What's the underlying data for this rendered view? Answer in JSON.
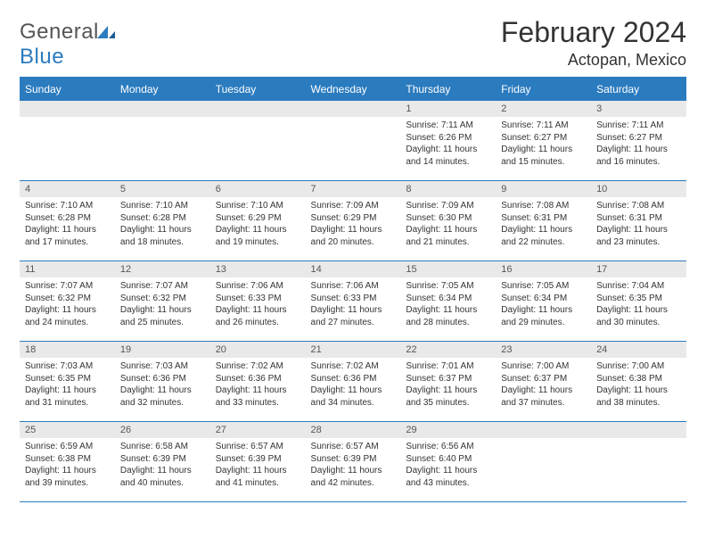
{
  "logo": {
    "textGray": "General",
    "textBlue": "Blue"
  },
  "title": "February 2024",
  "location": "Actopan, Mexico",
  "colors": {
    "headerBg": "#2b7bbf",
    "headerText": "#ffffff",
    "dayNumBg": "#e9e9e9",
    "bodyText": "#333333",
    "logoGray": "#555555",
    "logoBlue": "#2b7bbf",
    "pageBg": "#ffffff"
  },
  "dayNames": [
    "Sunday",
    "Monday",
    "Tuesday",
    "Wednesday",
    "Thursday",
    "Friday",
    "Saturday"
  ],
  "weeks": [
    [
      null,
      null,
      null,
      null,
      {
        "n": "1",
        "sr": "7:11 AM",
        "ss": "6:26 PM",
        "dl": "11 hours and 14 minutes."
      },
      {
        "n": "2",
        "sr": "7:11 AM",
        "ss": "6:27 PM",
        "dl": "11 hours and 15 minutes."
      },
      {
        "n": "3",
        "sr": "7:11 AM",
        "ss": "6:27 PM",
        "dl": "11 hours and 16 minutes."
      }
    ],
    [
      {
        "n": "4",
        "sr": "7:10 AM",
        "ss": "6:28 PM",
        "dl": "11 hours and 17 minutes."
      },
      {
        "n": "5",
        "sr": "7:10 AM",
        "ss": "6:28 PM",
        "dl": "11 hours and 18 minutes."
      },
      {
        "n": "6",
        "sr": "7:10 AM",
        "ss": "6:29 PM",
        "dl": "11 hours and 19 minutes."
      },
      {
        "n": "7",
        "sr": "7:09 AM",
        "ss": "6:29 PM",
        "dl": "11 hours and 20 minutes."
      },
      {
        "n": "8",
        "sr": "7:09 AM",
        "ss": "6:30 PM",
        "dl": "11 hours and 21 minutes."
      },
      {
        "n": "9",
        "sr": "7:08 AM",
        "ss": "6:31 PM",
        "dl": "11 hours and 22 minutes."
      },
      {
        "n": "10",
        "sr": "7:08 AM",
        "ss": "6:31 PM",
        "dl": "11 hours and 23 minutes."
      }
    ],
    [
      {
        "n": "11",
        "sr": "7:07 AM",
        "ss": "6:32 PM",
        "dl": "11 hours and 24 minutes."
      },
      {
        "n": "12",
        "sr": "7:07 AM",
        "ss": "6:32 PM",
        "dl": "11 hours and 25 minutes."
      },
      {
        "n": "13",
        "sr": "7:06 AM",
        "ss": "6:33 PM",
        "dl": "11 hours and 26 minutes."
      },
      {
        "n": "14",
        "sr": "7:06 AM",
        "ss": "6:33 PM",
        "dl": "11 hours and 27 minutes."
      },
      {
        "n": "15",
        "sr": "7:05 AM",
        "ss": "6:34 PM",
        "dl": "11 hours and 28 minutes."
      },
      {
        "n": "16",
        "sr": "7:05 AM",
        "ss": "6:34 PM",
        "dl": "11 hours and 29 minutes."
      },
      {
        "n": "17",
        "sr": "7:04 AM",
        "ss": "6:35 PM",
        "dl": "11 hours and 30 minutes."
      }
    ],
    [
      {
        "n": "18",
        "sr": "7:03 AM",
        "ss": "6:35 PM",
        "dl": "11 hours and 31 minutes."
      },
      {
        "n": "19",
        "sr": "7:03 AM",
        "ss": "6:36 PM",
        "dl": "11 hours and 32 minutes."
      },
      {
        "n": "20",
        "sr": "7:02 AM",
        "ss": "6:36 PM",
        "dl": "11 hours and 33 minutes."
      },
      {
        "n": "21",
        "sr": "7:02 AM",
        "ss": "6:36 PM",
        "dl": "11 hours and 34 minutes."
      },
      {
        "n": "22",
        "sr": "7:01 AM",
        "ss": "6:37 PM",
        "dl": "11 hours and 35 minutes."
      },
      {
        "n": "23",
        "sr": "7:00 AM",
        "ss": "6:37 PM",
        "dl": "11 hours and 37 minutes."
      },
      {
        "n": "24",
        "sr": "7:00 AM",
        "ss": "6:38 PM",
        "dl": "11 hours and 38 minutes."
      }
    ],
    [
      {
        "n": "25",
        "sr": "6:59 AM",
        "ss": "6:38 PM",
        "dl": "11 hours and 39 minutes."
      },
      {
        "n": "26",
        "sr": "6:58 AM",
        "ss": "6:39 PM",
        "dl": "11 hours and 40 minutes."
      },
      {
        "n": "27",
        "sr": "6:57 AM",
        "ss": "6:39 PM",
        "dl": "11 hours and 41 minutes."
      },
      {
        "n": "28",
        "sr": "6:57 AM",
        "ss": "6:39 PM",
        "dl": "11 hours and 42 minutes."
      },
      {
        "n": "29",
        "sr": "6:56 AM",
        "ss": "6:40 PM",
        "dl": "11 hours and 43 minutes."
      },
      null,
      null
    ]
  ],
  "labels": {
    "sunrise": "Sunrise:",
    "sunset": "Sunset:",
    "daylight": "Daylight:"
  }
}
